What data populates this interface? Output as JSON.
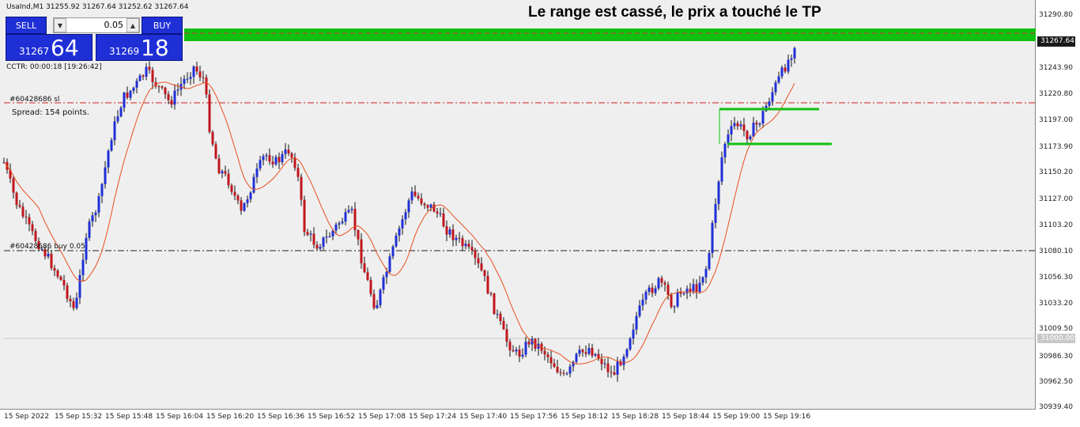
{
  "symbol_line": "UsaInd,M1  31255.92 31267.64 31252.62 31267.64",
  "headline": "Le range est cassé, le prix a touché le TP",
  "trade_panel": {
    "sell_label": "SELL",
    "buy_label": "BUY",
    "lot": "0.05",
    "lot_down": "▼",
    "lot_up": "▲",
    "sell_small": "31267",
    "sell_big": "64",
    "buy_small": "31269",
    "buy_big": "18"
  },
  "cctr": "CCTR: 00:00:18 [19:26:42]",
  "spread": "Spread: 154 points.",
  "order_lines": {
    "sl_label": "#60428686 sl",
    "buy_label": "#60428686 buy 0.05"
  },
  "price_axis": [
    "31290.80",
    "31267.64",
    "31243.90",
    "31220.80",
    "31197.00",
    "31173.90",
    "31150.20",
    "31127.00",
    "31103.20",
    "31080.10",
    "31056.30",
    "31033.20",
    "31009.50",
    "31000.00",
    "30986.30",
    "30962.50",
    "30939.40"
  ],
  "current_price": "31267.64",
  "marked_level": "31000.00",
  "time_axis": [
    "15 Sep 2022",
    "15 Sep 15:32",
    "15 Sep 15:48",
    "15 Sep 16:04",
    "15 Sep 16:20",
    "15 Sep 16:36",
    "15 Sep 16:52",
    "15 Sep 17:08",
    "15 Sep 17:24",
    "15 Sep 17:40",
    "15 Sep 17:56",
    "15 Sep 18:12",
    "15 Sep 18:28",
    "15 Sep 18:44",
    "15 Sep 19:00",
    "15 Sep 19:16"
  ],
  "colors": {
    "bull": "#1f2fd6",
    "bear": "#c0161c",
    "ma": "#e8501e",
    "tp_zone": "#10c010",
    "sl_line": "#cc2222",
    "range_box": "#10c010"
  }
}
